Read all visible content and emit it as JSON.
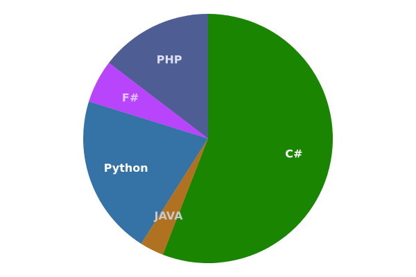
{
  "chart_data": {
    "type": "pie",
    "title": "",
    "legend": "none",
    "slices": [
      {
        "label": "C#",
        "value": 55.9,
        "color": "#1a8500",
        "label_color": "#ffffff"
      },
      {
        "label": "JAVA",
        "value": 3.1,
        "color": "#b07220",
        "label_color": "#c9c9c9"
      },
      {
        "label": "Python",
        "value": 20.8,
        "color": "#3572a5",
        "label_color": "#ffffff"
      },
      {
        "label": "F#",
        "value": 5.6,
        "color": "#b845fc",
        "label_color": "#e0c8ff"
      },
      {
        "label": "PHP",
        "value": 14.6,
        "color": "#4f5d95",
        "label_color": "#dde0f0"
      }
    ]
  }
}
